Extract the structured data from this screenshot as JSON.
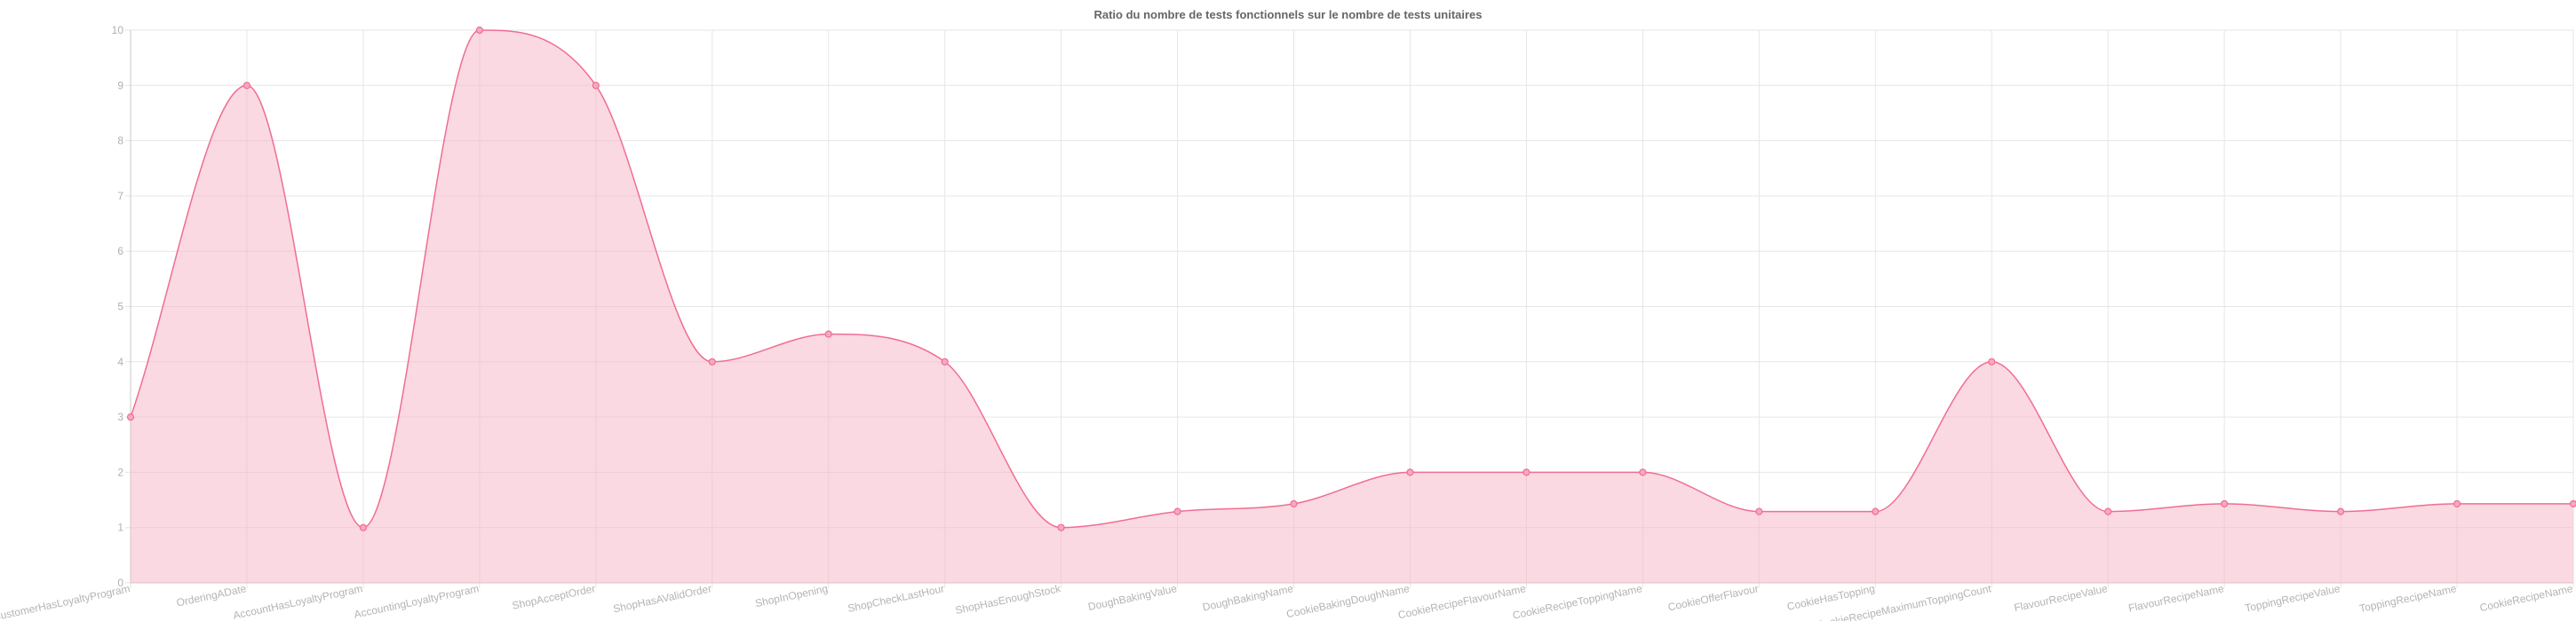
{
  "colors": {
    "line": "#f06d93",
    "fill": "rgba(248, 180, 198, 0.5)",
    "point_fill": "#f7a9bf"
  },
  "chart_data": {
    "type": "area",
    "title": "Ratio du nombre de tests fonctionnels sur le nombre de tests unitaires",
    "xlabel": "",
    "ylabel": "",
    "ylim": [
      0,
      10
    ],
    "yticks": [
      0,
      1,
      2,
      3,
      4,
      5,
      6,
      7,
      8,
      9,
      10
    ],
    "grid": true,
    "legend": "none",
    "categories": [
      "CustomerHasLoyaltyProgram",
      "OrderingADate",
      "AccountHasLoyaltyProgram",
      "AccountingLoyaltyProgram",
      "ShopAcceptOrder",
      "ShopHasAValidOrder",
      "ShopInOpening",
      "ShopCheckLastHour",
      "ShopHasEnoughStock",
      "DoughBakingValue",
      "DoughBakingName",
      "CookieBakingDoughName",
      "CookieRecipeFlavourName",
      "CookieRecipeToppingName",
      "CookieOfferFlavour",
      "CookieHasTopping",
      "CookieRecipeMaximumToppingCount",
      "FlavourRecipeValue",
      "FlavourRecipeName",
      "ToppingRecipeValue",
      "ToppingRecipeName",
      "CookieRecipeName"
    ],
    "series": [
      {
        "values": [
          3,
          9,
          1,
          10,
          9,
          4,
          4.5,
          4,
          1,
          1.29,
          1.43,
          2,
          2,
          2,
          1.29,
          1.29,
          4,
          1.29,
          1.43,
          1.29,
          1.43,
          1.43
        ]
      }
    ]
  }
}
